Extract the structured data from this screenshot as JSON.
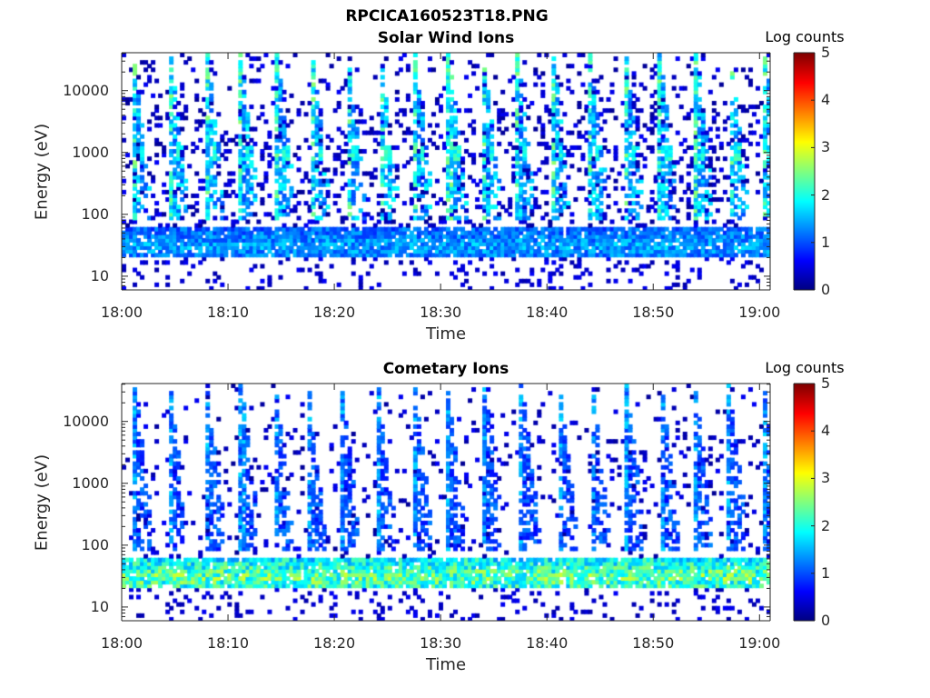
{
  "figure_title": "RPCICA160523T18.PNG",
  "chart_data": [
    {
      "type": "heatmap",
      "title": "Solar Wind Ions",
      "xlabel": "Time",
      "ylabel": "Energy (eV)",
      "x_tick_labels": [
        "18:00",
        "18:10",
        "18:20",
        "18:30",
        "18:40",
        "18:50",
        "19:00"
      ],
      "x_range_minutes": [
        0,
        61
      ],
      "y_tick_labels": [
        "10",
        "100",
        "1000",
        "10000"
      ],
      "y_scale": "log",
      "y_range": [
        6,
        41000
      ],
      "colorbar": {
        "label": "Log counts",
        "range": [
          0,
          5
        ],
        "tick_labels": [
          "0",
          "1",
          "2",
          "3",
          "4",
          "5"
        ],
        "colormap": "jet"
      },
      "features": {
        "low_energy_band_eV": [
          22,
          65
        ],
        "band_level": 1.4,
        "burst_period_min": 3.3,
        "burst_first_min": 1.1,
        "burst_level": 1.8,
        "blob_energy_eV": 1000,
        "blob_level": 2.1,
        "background_density": 0.18
      },
      "seed": 7
    },
    {
      "type": "heatmap",
      "title": "Cometary Ions",
      "xlabel": "Time",
      "ylabel": "Energy (eV)",
      "x_tick_labels": [
        "18:00",
        "18:10",
        "18:20",
        "18:30",
        "18:40",
        "18:50",
        "19:00"
      ],
      "x_range_minutes": [
        0,
        61
      ],
      "y_tick_labels": [
        "10",
        "100",
        "1000",
        "10000"
      ],
      "y_scale": "log",
      "y_range": [
        6,
        41000
      ],
      "colorbar": {
        "label": "Log counts",
        "range": [
          0,
          5
        ],
        "tick_labels": [
          "0",
          "1",
          "2",
          "3",
          "4",
          "5"
        ],
        "colormap": "jet"
      },
      "features": {
        "low_energy_band_eV": [
          20,
          65
        ],
        "band_level": 2.3,
        "burst_period_min": 3.3,
        "burst_first_min": 1.3,
        "burst_level": 1.2,
        "blob_energy_eV": 0,
        "blob_level": 0,
        "background_density": 0.08
      },
      "seed": 19
    }
  ]
}
